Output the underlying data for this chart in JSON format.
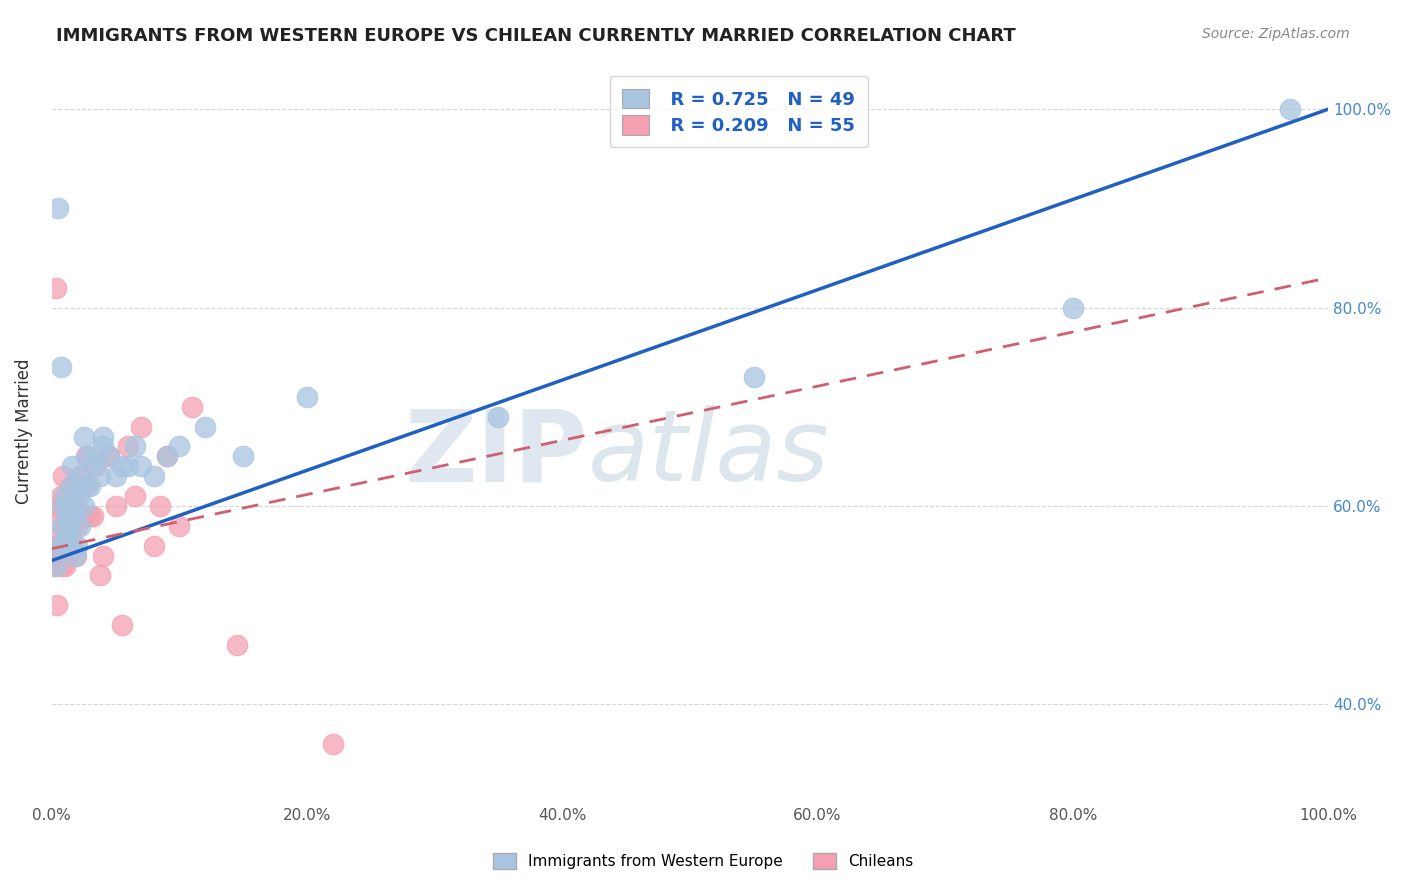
{
  "title": "IMMIGRANTS FROM WESTERN EUROPE VS CHILEAN CURRENTLY MARRIED CORRELATION CHART",
  "source": "Source: ZipAtlas.com",
  "ylabel": "Currently Married",
  "legend_blue_r": "R = 0.725",
  "legend_blue_n": "N = 49",
  "legend_pink_r": "R = 0.209",
  "legend_pink_n": "N = 55",
  "legend_label_blue": "Immigrants from Western Europe",
  "legend_label_pink": "Chileans",
  "blue_color": "#a8c4e0",
  "pink_color": "#f4a0b0",
  "blue_line_color": "#2060c0",
  "pink_line_color": "#d06070",
  "watermark_zip": "ZIP",
  "watermark_atlas": "atlas",
  "background_color": "#ffffff",
  "grid_color": "#cccccc",
  "blue_scatter_x": [
    0.003,
    0.005,
    0.006,
    0.007,
    0.008,
    0.009,
    0.01,
    0.01,
    0.011,
    0.012,
    0.013,
    0.014,
    0.015,
    0.015,
    0.016,
    0.017,
    0.018,
    0.018,
    0.019,
    0.02,
    0.021,
    0.022,
    0.023,
    0.025,
    0.025,
    0.027,
    0.028,
    0.03,
    0.032,
    0.035,
    0.038,
    0.04,
    0.04,
    0.045,
    0.05,
    0.055,
    0.06,
    0.065,
    0.07,
    0.08,
    0.09,
    0.1,
    0.12,
    0.15,
    0.2,
    0.35,
    0.55,
    0.8,
    0.97
  ],
  "blue_scatter_y": [
    0.54,
    0.9,
    0.56,
    0.74,
    0.58,
    0.6,
    0.56,
    0.61,
    0.57,
    0.59,
    0.6,
    0.58,
    0.62,
    0.56,
    0.64,
    0.59,
    0.55,
    0.62,
    0.6,
    0.56,
    0.61,
    0.58,
    0.63,
    0.6,
    0.67,
    0.62,
    0.65,
    0.62,
    0.64,
    0.65,
    0.63,
    0.66,
    0.67,
    0.65,
    0.63,
    0.64,
    0.64,
    0.66,
    0.64,
    0.63,
    0.65,
    0.66,
    0.68,
    0.65,
    0.71,
    0.69,
    0.73,
    0.8,
    1.0
  ],
  "pink_scatter_x": [
    0.002,
    0.003,
    0.003,
    0.004,
    0.005,
    0.005,
    0.006,
    0.006,
    0.007,
    0.007,
    0.008,
    0.008,
    0.009,
    0.009,
    0.009,
    0.01,
    0.01,
    0.01,
    0.011,
    0.011,
    0.012,
    0.012,
    0.013,
    0.013,
    0.014,
    0.015,
    0.015,
    0.016,
    0.017,
    0.018,
    0.019,
    0.02,
    0.021,
    0.022,
    0.025,
    0.027,
    0.028,
    0.03,
    0.032,
    0.035,
    0.038,
    0.04,
    0.045,
    0.05,
    0.055,
    0.06,
    0.065,
    0.07,
    0.08,
    0.085,
    0.09,
    0.1,
    0.11,
    0.145,
    0.22
  ],
  "pink_scatter_y": [
    0.54,
    0.56,
    0.82,
    0.5,
    0.56,
    0.6,
    0.57,
    0.59,
    0.55,
    0.61,
    0.54,
    0.56,
    0.58,
    0.6,
    0.63,
    0.54,
    0.57,
    0.61,
    0.55,
    0.58,
    0.56,
    0.6,
    0.58,
    0.55,
    0.59,
    0.57,
    0.62,
    0.56,
    0.58,
    0.6,
    0.55,
    0.58,
    0.62,
    0.63,
    0.59,
    0.65,
    0.62,
    0.59,
    0.59,
    0.64,
    0.53,
    0.55,
    0.65,
    0.6,
    0.48,
    0.66,
    0.61,
    0.68,
    0.56,
    0.6,
    0.65,
    0.58,
    0.7,
    0.46,
    0.36
  ],
  "xmin": 0.0,
  "xmax": 1.0,
  "ymin": 0.3,
  "ymax": 1.05,
  "xticks": [
    0.0,
    0.2,
    0.4,
    0.6,
    0.8,
    1.0
  ],
  "xticklabels": [
    "0.0%",
    "20.0%",
    "40.0%",
    "60.0%",
    "80.0%",
    "100.0%"
  ],
  "yticks": [
    0.4,
    0.6,
    0.8,
    1.0
  ],
  "yticklabels_right": [
    "40.0%",
    "60.0%",
    "80.0%",
    "100.0%"
  ]
}
